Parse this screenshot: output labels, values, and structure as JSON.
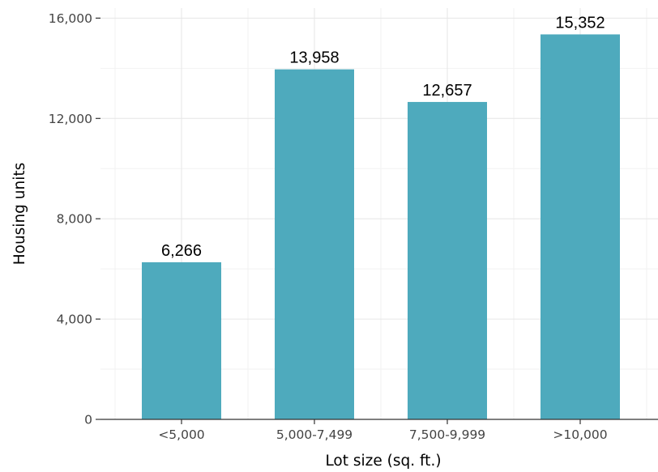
{
  "chart_data": {
    "type": "bar",
    "categories": [
      "<5,000",
      "5,000-7,499",
      "7,500-9,999",
      ">10,000"
    ],
    "values": [
      6266,
      13958,
      12657,
      15352
    ],
    "data_labels": [
      "6,266",
      "13,958",
      "12,657",
      "15,352"
    ],
    "xlabel": "Lot size (sq. ft.)",
    "ylabel": "Housing units",
    "ylim": [
      0,
      16400
    ],
    "yticks": [
      0,
      4000,
      8000,
      12000,
      16000
    ],
    "ytick_labels": [
      "0",
      "4,000",
      "8,000",
      "12,000",
      "16,000"
    ],
    "grid": true,
    "legend": "none",
    "bar_color": "#4eaabd"
  }
}
